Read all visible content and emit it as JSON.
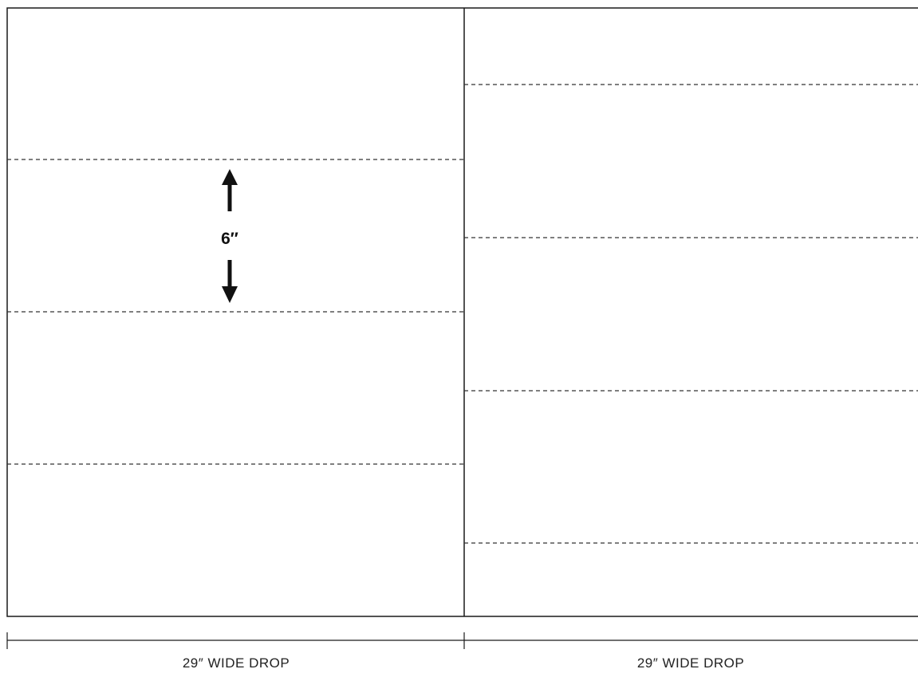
{
  "panels": [
    {
      "id": "left",
      "width_label": "29″ WIDE DROP"
    },
    {
      "id": "right",
      "width_label": "29″ WIDE DROP"
    }
  ],
  "measurement": {
    "label": "6″"
  },
  "colors": {
    "outline": "#1a1a1a",
    "dashed_line": "#333333",
    "arrow": "#111111"
  }
}
